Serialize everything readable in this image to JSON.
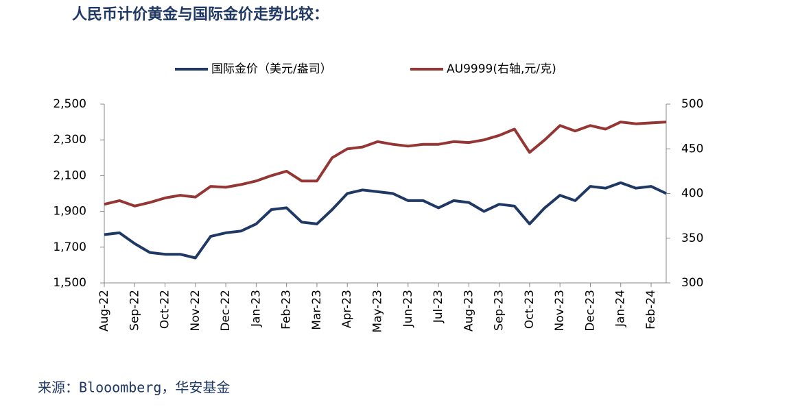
{
  "chart_data": {
    "type": "line",
    "title": "人民币计价黄金与国际金价走势比较：",
    "source": "来源：Blooomberg，华安基金",
    "categories": [
      "Aug-22",
      null,
      "Sep-22",
      null,
      "Oct-22",
      null,
      "Nov-22",
      null,
      "Dec-22",
      null,
      "Jan-23",
      null,
      "Feb-23",
      null,
      "Mar-23",
      null,
      "Apr-23",
      null,
      "May-23",
      null,
      "Jun-23",
      null,
      "Jul-23",
      null,
      "Aug-23",
      null,
      "Sep-23",
      null,
      "Oct-23",
      null,
      "Nov-23",
      null,
      "Dec-23",
      null,
      "Jan-24",
      null,
      "Feb-24",
      null
    ],
    "series": [
      {
        "name": "国际金价（美元/盎司）",
        "color": "#1f3864",
        "values": [
          1770,
          1780,
          1720,
          1670,
          1660,
          1660,
          1640,
          1760,
          1780,
          1790,
          1830,
          1910,
          1920,
          1840,
          1830,
          1910,
          2000,
          2020,
          2010,
          2000,
          1960,
          1960,
          1920,
          1960,
          1950,
          1900,
          1940,
          1930,
          1830,
          1920,
          1990,
          1960,
          2040,
          2030,
          2060,
          2030,
          2040,
          2000
        ]
      },
      {
        "name": "AU9999(右轴,元/克)",
        "color": "#943634",
        "axis": "y2",
        "values": [
          388,
          392,
          386,
          390,
          395,
          398,
          396,
          408,
          407,
          410,
          414,
          420,
          425,
          414,
          414,
          440,
          450,
          452,
          458,
          455,
          453,
          455,
          455,
          458,
          457,
          460,
          465,
          472,
          446,
          460,
          476,
          470,
          476,
          472,
          480,
          478,
          479,
          480
        ]
      }
    ],
    "ylim": [
      1500,
      2500
    ],
    "yticks": [
      {
        "value": 1500,
        "label": "1,500"
      },
      {
        "value": 1700,
        "label": "1,700"
      },
      {
        "value": 1900,
        "label": "1,900"
      },
      {
        "value": 2100,
        "label": "2,100"
      },
      {
        "value": 2300,
        "label": "2,300"
      },
      {
        "value": 2500,
        "label": "2,500"
      }
    ],
    "y2lim": [
      300,
      500
    ],
    "y2ticks": [
      300,
      350,
      400,
      450,
      500
    ]
  }
}
